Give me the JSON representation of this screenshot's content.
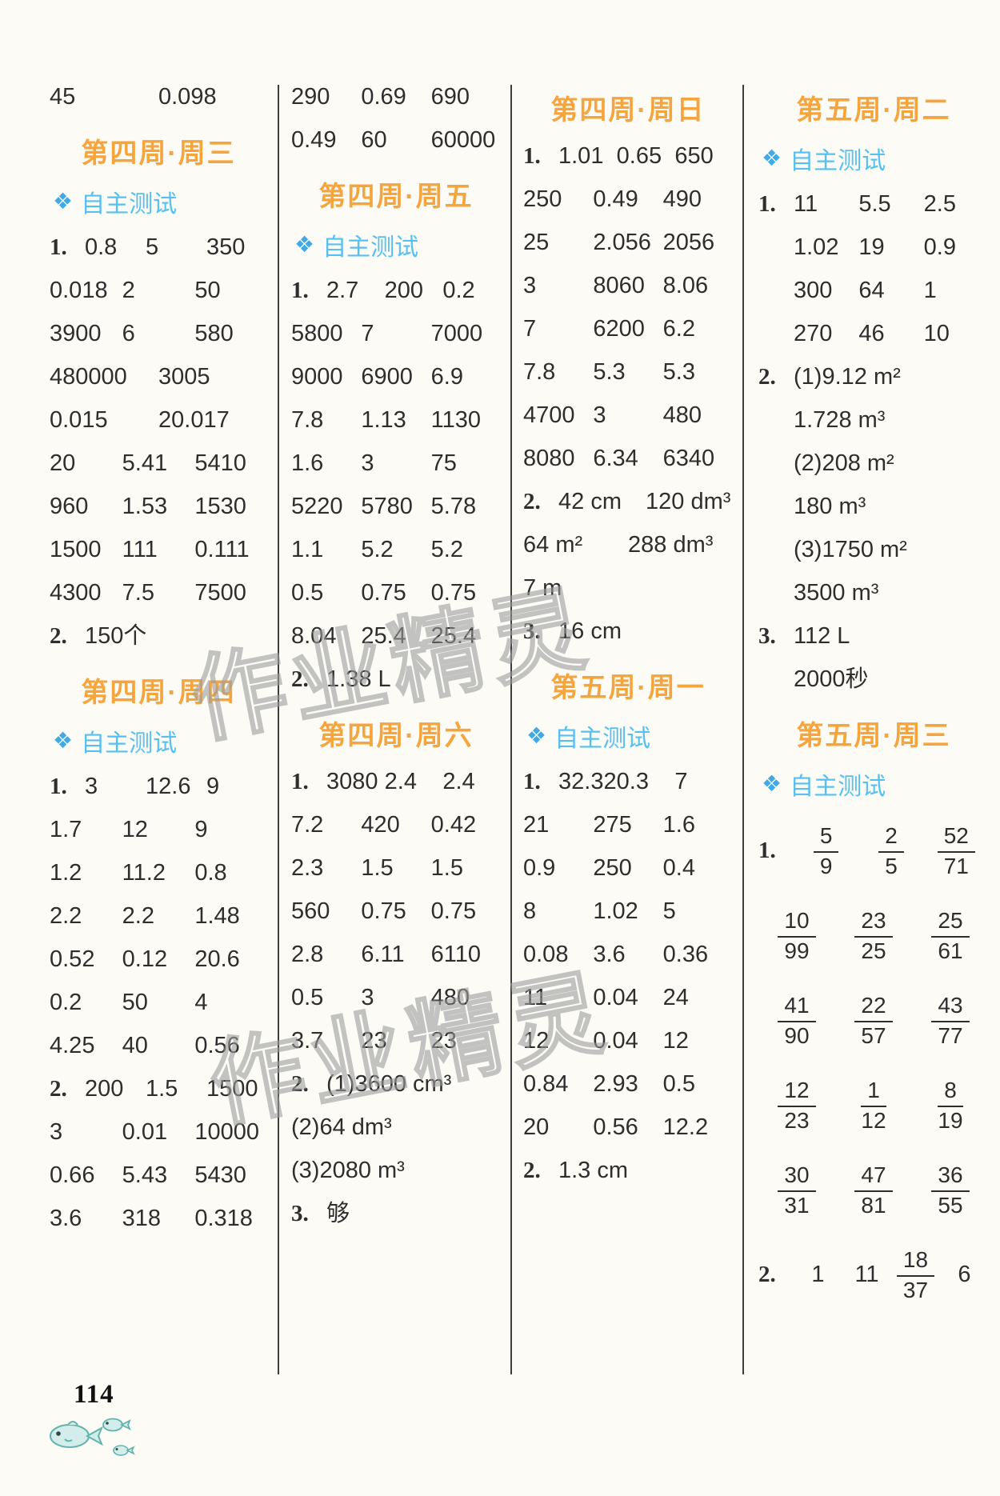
{
  "page": {
    "number": "114",
    "watermark": "作业精灵",
    "colors": {
      "header_orange": "#f6a53c",
      "selftest_blue": "#56c0f0",
      "text": "#2e2e2e"
    }
  },
  "labels": {
    "self_test": "自主测试",
    "self_test_icon": "❖"
  },
  "columns": [
    {
      "blocks": [
        {
          "t": "row",
          "cells": [
            "45",
            "0.098"
          ]
        },
        {
          "t": "header",
          "text": "第四周·周三"
        },
        {
          "t": "selftest"
        },
        {
          "t": "row",
          "m": "1.",
          "cells": [
            "0.8",
            "5",
            "350"
          ]
        },
        {
          "t": "row",
          "cells": [
            "0.018",
            "2",
            "50"
          ]
        },
        {
          "t": "row",
          "cells": [
            "3900",
            "6",
            "580"
          ]
        },
        {
          "t": "row",
          "cells": [
            "480000",
            "3005"
          ]
        },
        {
          "t": "row",
          "cells": [
            "0.015",
            "20.017"
          ]
        },
        {
          "t": "row",
          "cells": [
            "20",
            "5.41",
            "5410"
          ]
        },
        {
          "t": "row",
          "cells": [
            "960",
            "1.53",
            "1530"
          ]
        },
        {
          "t": "row",
          "cells": [
            "1500",
            "111",
            "0.111"
          ]
        },
        {
          "t": "row",
          "cells": [
            "4300",
            "7.5",
            "7500"
          ]
        },
        {
          "t": "row",
          "m": "2.",
          "cells": [
            "150个"
          ]
        },
        {
          "t": "header",
          "text": "第四周·周四"
        },
        {
          "t": "selftest"
        },
        {
          "t": "row",
          "m": "1.",
          "cells": [
            "3",
            "12.6",
            "9"
          ]
        },
        {
          "t": "row",
          "cells": [
            "1.7",
            "12",
            "9"
          ]
        },
        {
          "t": "row",
          "cells": [
            "1.2",
            "11.2",
            "0.8"
          ]
        },
        {
          "t": "row",
          "cells": [
            "2.2",
            "2.2",
            "1.48"
          ]
        },
        {
          "t": "row",
          "cells": [
            "0.52",
            "0.12",
            "20.6"
          ]
        },
        {
          "t": "row",
          "cells": [
            "0.2",
            "50",
            "4"
          ]
        },
        {
          "t": "row",
          "cells": [
            "4.25",
            "40",
            "0.56"
          ]
        },
        {
          "t": "row",
          "m": "2.",
          "cells": [
            "200",
            "1.5",
            "1500"
          ]
        },
        {
          "t": "row",
          "cells": [
            "3",
            "0.01",
            "10000"
          ]
        },
        {
          "t": "row",
          "cells": [
            "0.66",
            "5.43",
            "5430"
          ]
        },
        {
          "t": "row",
          "cells": [
            "3.6",
            "318",
            "0.318"
          ]
        }
      ]
    },
    {
      "blocks": [
        {
          "t": "row",
          "cells": [
            "290",
            "0.69",
            "690"
          ]
        },
        {
          "t": "row",
          "cells": [
            "0.49",
            "60",
            "60000"
          ]
        },
        {
          "t": "header",
          "text": "第四周·周五"
        },
        {
          "t": "selftest"
        },
        {
          "t": "row",
          "m": "1.",
          "cells": [
            "2.7",
            "200",
            "0.2"
          ]
        },
        {
          "t": "row",
          "cells": [
            "5800",
            "7",
            "7000"
          ]
        },
        {
          "t": "row",
          "cells": [
            "9000",
            "6900",
            "6.9"
          ]
        },
        {
          "t": "row",
          "cells": [
            "7.8",
            "1.13",
            "1130"
          ]
        },
        {
          "t": "row",
          "cells": [
            "1.6",
            "3",
            "75"
          ]
        },
        {
          "t": "row",
          "cells": [
            "5220",
            "5780",
            "5.78"
          ]
        },
        {
          "t": "row",
          "cells": [
            "1.1",
            "5.2",
            "5.2"
          ]
        },
        {
          "t": "row",
          "cells": [
            "0.5",
            "0.75",
            "0.75"
          ]
        },
        {
          "t": "row",
          "cells": [
            "8.04",
            "25.4",
            "25.4"
          ]
        },
        {
          "t": "row",
          "m": "2.",
          "cells": [
            "1.38 L"
          ]
        },
        {
          "t": "header",
          "text": "第四周·周六"
        },
        {
          "t": "row",
          "m": "1.",
          "cells": [
            "3080",
            "2.4",
            "2.4"
          ]
        },
        {
          "t": "row",
          "cells": [
            "7.2",
            "420",
            "0.42"
          ]
        },
        {
          "t": "row",
          "cells": [
            "2.3",
            "1.5",
            "1.5"
          ]
        },
        {
          "t": "row",
          "cells": [
            "560",
            "0.75",
            "0.75"
          ]
        },
        {
          "t": "row",
          "cells": [
            "2.8",
            "6.11",
            "6110"
          ]
        },
        {
          "t": "row",
          "cells": [
            "0.5",
            "3",
            "480"
          ]
        },
        {
          "t": "row",
          "cells": [
            "3.7",
            "23",
            "23"
          ]
        },
        {
          "t": "row",
          "m": "2.",
          "cells": [
            "(1)3600 cm³"
          ]
        },
        {
          "t": "row",
          "cells": [
            "(2)64 dm³"
          ]
        },
        {
          "t": "row",
          "cells": [
            "(3)2080 m³"
          ]
        },
        {
          "t": "row",
          "m": "3.",
          "cells": [
            "够"
          ]
        }
      ]
    },
    {
      "blocks": [
        {
          "t": "header",
          "text": "第四周·周日"
        },
        {
          "t": "row",
          "m": "1.",
          "cells": [
            "1.01",
            "0.65",
            "650"
          ]
        },
        {
          "t": "row",
          "cells": [
            "250",
            "0.49",
            "490"
          ]
        },
        {
          "t": "row",
          "cells": [
            "25",
            "2.056",
            "2056"
          ]
        },
        {
          "t": "row",
          "cells": [
            "3",
            "8060",
            "8.06"
          ]
        },
        {
          "t": "row",
          "cells": [
            "7",
            "6200",
            "6.2"
          ]
        },
        {
          "t": "row",
          "cells": [
            "7.8",
            "5.3",
            "5.3"
          ]
        },
        {
          "t": "row",
          "cells": [
            "4700",
            "3",
            "480"
          ]
        },
        {
          "t": "row",
          "cells": [
            "8080",
            "6.34",
            "6340"
          ]
        },
        {
          "t": "row",
          "m": "2.",
          "cells": [
            "42 cm",
            "120 dm³"
          ]
        },
        {
          "t": "row",
          "cells": [
            "64 m²",
            "288 dm³"
          ]
        },
        {
          "t": "row",
          "cells": [
            "7 m"
          ]
        },
        {
          "t": "row",
          "m": "3.",
          "cells": [
            "16 cm"
          ]
        },
        {
          "t": "header",
          "text": "第五周·周一"
        },
        {
          "t": "selftest"
        },
        {
          "t": "row",
          "m": "1.",
          "cells": [
            "32.32",
            "0.3",
            "7"
          ]
        },
        {
          "t": "row",
          "cells": [
            "21",
            "275",
            "1.6"
          ]
        },
        {
          "t": "row",
          "cells": [
            "0.9",
            "250",
            "0.4"
          ]
        },
        {
          "t": "row",
          "cells": [
            "8",
            "1.02",
            "5"
          ]
        },
        {
          "t": "row",
          "cells": [
            "0.08",
            "3.6",
            "0.36"
          ]
        },
        {
          "t": "row",
          "cells": [
            "11",
            "0.04",
            "24"
          ]
        },
        {
          "t": "row",
          "cells": [
            "12",
            "0.04",
            "12"
          ]
        },
        {
          "t": "row",
          "cells": [
            "0.84",
            "2.93",
            "0.5"
          ]
        },
        {
          "t": "row",
          "cells": [
            "20",
            "0.56",
            "12.2"
          ]
        },
        {
          "t": "row",
          "m": "2.",
          "cells": [
            "1.3 cm"
          ]
        }
      ]
    },
    {
      "blocks": [
        {
          "t": "header",
          "text": "第五周·周二"
        },
        {
          "t": "selftest"
        },
        {
          "t": "row",
          "m": "1.",
          "cells": [
            "11",
            "5.5",
            "2.5"
          ]
        },
        {
          "t": "row",
          "ind": true,
          "cells": [
            "1.02",
            "19",
            "0.9"
          ]
        },
        {
          "t": "row",
          "ind": true,
          "cells": [
            "300",
            "64",
            "1"
          ]
        },
        {
          "t": "row",
          "ind": true,
          "cells": [
            "270",
            "46",
            "10"
          ]
        },
        {
          "t": "row",
          "m": "2.",
          "cells": [
            "(1)9.12 m²"
          ]
        },
        {
          "t": "row",
          "ind": true,
          "cells": [
            "1.728 m³"
          ]
        },
        {
          "t": "row",
          "ind": true,
          "cells": [
            "(2)208 m²"
          ]
        },
        {
          "t": "row",
          "ind": true,
          "cells": [
            "180 m³"
          ]
        },
        {
          "t": "row",
          "ind": true,
          "cells": [
            "(3)1750 m²"
          ]
        },
        {
          "t": "row",
          "ind": true,
          "cells": [
            "3500 m³"
          ]
        },
        {
          "t": "row",
          "m": "3.",
          "cells": [
            "112 L"
          ]
        },
        {
          "t": "row",
          "ind": true,
          "cells": [
            "2000秒"
          ]
        },
        {
          "t": "header",
          "text": "第五周·周三"
        },
        {
          "t": "selftest"
        },
        {
          "t": "fracs",
          "m": "1.",
          "cells": [
            {
              "n": "5",
              "d": "9"
            },
            {
              "n": "2",
              "d": "5"
            },
            {
              "n": "52",
              "d": "71"
            }
          ]
        },
        {
          "t": "fracs",
          "cells": [
            {
              "n": "10",
              "d": "99"
            },
            {
              "n": "23",
              "d": "25"
            },
            {
              "n": "25",
              "d": "61"
            }
          ]
        },
        {
          "t": "fracs",
          "cells": [
            {
              "n": "41",
              "d": "90"
            },
            {
              "n": "22",
              "d": "57"
            },
            {
              "n": "43",
              "d": "77"
            }
          ]
        },
        {
          "t": "fracs",
          "cells": [
            {
              "n": "12",
              "d": "23"
            },
            {
              "n": "1",
              "d": "12"
            },
            {
              "n": "8",
              "d": "19"
            }
          ]
        },
        {
          "t": "fracs",
          "cells": [
            {
              "n": "30",
              "d": "31"
            },
            {
              "n": "47",
              "d": "81"
            },
            {
              "n": "36",
              "d": "55"
            }
          ]
        },
        {
          "t": "mixed",
          "m": "2.",
          "cells": [
            "1",
            "11",
            {
              "n": "18",
              "d": "37"
            },
            "6"
          ]
        }
      ]
    }
  ]
}
